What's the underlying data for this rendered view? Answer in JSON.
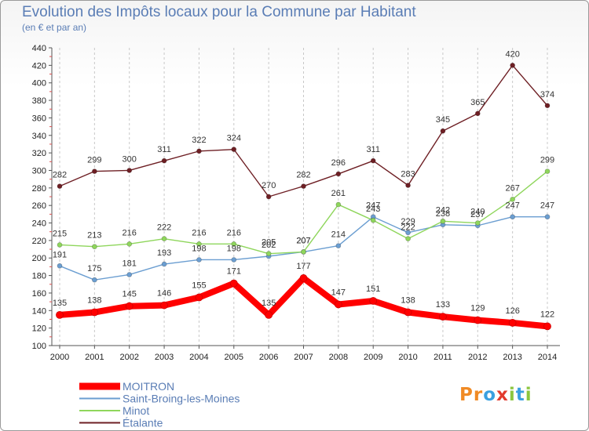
{
  "chart_data": {
    "type": "line",
    "title": "Evolution des Impôts locaux pour la Commune par Habitant",
    "subtitle": "(en € et par an)",
    "x": [
      "2000",
      "2001",
      "2002",
      "2003",
      "2004",
      "2005",
      "2006",
      "2007",
      "2008",
      "2009",
      "2010",
      "2011",
      "2012",
      "2013",
      "2014"
    ],
    "ylim": [
      100,
      440
    ],
    "yticks": [
      "100",
      "120",
      "140",
      "160",
      "180",
      "200",
      "220",
      "240",
      "260",
      "280",
      "300",
      "320",
      "340",
      "360",
      "380",
      "400",
      "420",
      "440"
    ],
    "grid": "dashed vertical lines",
    "legend_position": "bottom-left",
    "series": [
      {
        "name": "MOITRON",
        "color": "#ff0000",
        "values": [
          135,
          138,
          145,
          146,
          155,
          171,
          135,
          177,
          147,
          151,
          138,
          133,
          129,
          126,
          122
        ]
      },
      {
        "name": "Saint-Broing-les-Moines",
        "color": "#6b9ed1",
        "values": [
          191,
          175,
          181,
          193,
          198,
          198,
          202,
          207,
          214,
          247,
          229,
          238,
          237,
          247,
          247
        ]
      },
      {
        "name": "Minot",
        "color": "#8fd65c",
        "values": [
          215,
          213,
          216,
          222,
          216,
          216,
          205,
          207,
          261,
          243,
          222,
          242,
          240,
          267,
          299
        ]
      },
      {
        "name": "Étalante",
        "color": "#6e1f24",
        "values": [
          282,
          299,
          300,
          311,
          322,
          324,
          270,
          282,
          296,
          311,
          283,
          345,
          365,
          420,
          374
        ]
      }
    ]
  },
  "logo": {
    "text": "Proxiti",
    "letters": [
      "P",
      "r",
      "o",
      "x",
      "i",
      "t",
      "i"
    ],
    "colors": [
      "#f08a24",
      "#f08a24",
      "#3aa0e0",
      "#e23b2e",
      "#8cc63f",
      "#3aa0e0",
      "#8cc63f"
    ]
  }
}
